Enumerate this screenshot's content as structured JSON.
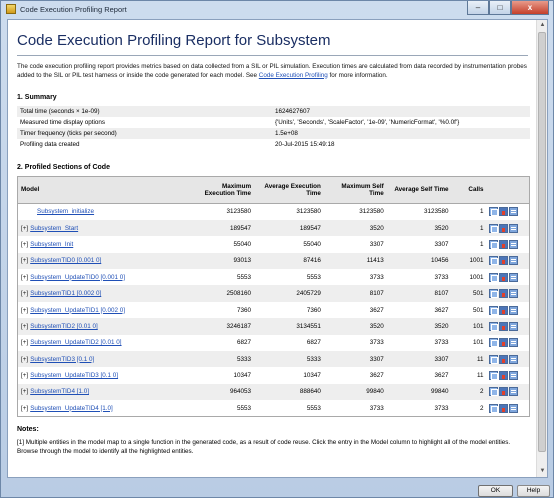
{
  "window": {
    "title": "Code Execution Profiling Report",
    "minimize": "–",
    "maximize": "□",
    "close": "x"
  },
  "report": {
    "title": "Code Execution Profiling Report for Subsystem",
    "intro_before_link": "The code execution profiling report provides metrics based on data collected from a SIL or PIL simulation. Execution times are calculated from data recorded by instrumentation probes added to the SIL or PIL test harness or inside the code generated for each model. See ",
    "intro_link": "Code Execution Profiling",
    "intro_after_link": " for more information."
  },
  "summary": {
    "heading": "1. Summary",
    "rows": [
      {
        "label": "Total time (seconds × 1e-09)",
        "value": "1624627607"
      },
      {
        "label": "Measured time display options",
        "value": "{'Units', 'Seconds', 'ScaleFactor', '1e-09', 'NumericFormat', '%0.0f'}"
      },
      {
        "label": "Timer frequency (ticks per second)",
        "value": "1.5e+08"
      },
      {
        "label": "Profiling data created",
        "value": "20-Jul-2015 15:49:18"
      }
    ]
  },
  "profiled": {
    "heading": "2. Profiled Sections of Code",
    "columns": [
      "Model",
      "Maximum Execution Time",
      "Average Execution Time",
      "Maximum Self Time",
      "Average Self Time",
      "Calls"
    ],
    "rows": [
      {
        "expand": "",
        "name": "Subsystem_initialize",
        "max_exec": "3123580",
        "avg_exec": "3123580",
        "max_self": "3123580",
        "avg_self": "3123580",
        "calls": "1"
      },
      {
        "expand": "[+]",
        "name": "Subsystem_Start",
        "max_exec": "189547",
        "avg_exec": "189547",
        "max_self": "3520",
        "avg_self": "3520",
        "calls": "1"
      },
      {
        "expand": "[+]",
        "name": "Subsystem_Init",
        "max_exec": "55040",
        "avg_exec": "55040",
        "max_self": "3307",
        "avg_self": "3307",
        "calls": "1"
      },
      {
        "expand": "[+]",
        "name": "SubsystemTID0 [0.001 0]",
        "max_exec": "93013",
        "avg_exec": "87416",
        "max_self": "11413",
        "avg_self": "10456",
        "calls": "1001"
      },
      {
        "expand": "[+]",
        "name": "Subsystem_UpdateTID0 [0.001 0]",
        "max_exec": "5553",
        "avg_exec": "5553",
        "max_self": "3733",
        "avg_self": "3733",
        "calls": "1001"
      },
      {
        "expand": "[+]",
        "name": "SubsystemTID1 [0.002 0]",
        "max_exec": "2508160",
        "avg_exec": "2405729",
        "max_self": "8107",
        "avg_self": "8107",
        "calls": "501"
      },
      {
        "expand": "[+]",
        "name": "Subsystem_UpdateTID1 [0.002 0]",
        "max_exec": "7360",
        "avg_exec": "7360",
        "max_self": "3627",
        "avg_self": "3627",
        "calls": "501"
      },
      {
        "expand": "[+]",
        "name": "SubsystemTID2 [0.01 0]",
        "max_exec": "3246187",
        "avg_exec": "3134551",
        "max_self": "3520",
        "avg_self": "3520",
        "calls": "101"
      },
      {
        "expand": "[+]",
        "name": "Subsystem_UpdateTID2 [0.01 0]",
        "max_exec": "6827",
        "avg_exec": "6827",
        "max_self": "3733",
        "avg_self": "3733",
        "calls": "101"
      },
      {
        "expand": "[+]",
        "name": "SubsystemTID3 [0.1 0]",
        "max_exec": "5333",
        "avg_exec": "5333",
        "max_self": "3307",
        "avg_self": "3307",
        "calls": "11"
      },
      {
        "expand": "[+]",
        "name": "Subsystem_UpdateTID3 [0.1 0]",
        "max_exec": "10347",
        "avg_exec": "10347",
        "max_self": "3627",
        "avg_self": "3627",
        "calls": "11"
      },
      {
        "expand": "[+]",
        "name": "SubsystemTID4 [1.0]",
        "max_exec": "964053",
        "avg_exec": "888640",
        "max_self": "99840",
        "avg_self": "99840",
        "calls": "2"
      },
      {
        "expand": "[+]",
        "name": "Subsystem_UpdateTID4 [1.0]",
        "max_exec": "5553",
        "avg_exec": "5553",
        "max_self": "3733",
        "avg_self": "3733",
        "calls": "2"
      }
    ],
    "row_icons": [
      "open-report-icon",
      "profile-chart-icon",
      "view-code-icon"
    ]
  },
  "notes": {
    "heading": "Notes:",
    "text": "[1] Multiple entities in the model map to a single function in the generated code, as a result of code reuse. Click the entry in the Model column to highlight all of the model entities. Browse through the model to identify all the highlighted entities."
  },
  "buttons": {
    "ok": "OK",
    "help": "Help"
  },
  "colors": {
    "title": "#1a2e63",
    "link": "#1f4fb6",
    "row_stripe": "#eeeeee"
  }
}
